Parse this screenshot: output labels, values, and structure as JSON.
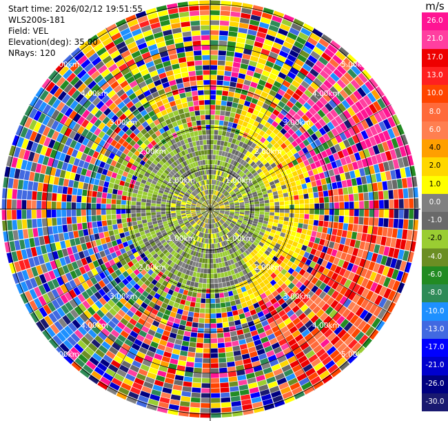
{
  "header": {
    "start_time": "Start time: 2026/02/12 19:51:55",
    "site": "WLS200s-181",
    "field": "Field: VEL",
    "elevation": "Elevation(deg): 35.00",
    "nrays": "NRays: 120"
  },
  "colorbar": {
    "unit": "m/s",
    "ticks": [
      "26.0",
      "21.0",
      "17.0",
      "13.0",
      "10.0",
      "8.0",
      "6.0",
      "4.0",
      "2.0",
      "1.0",
      "0.0",
      "-1.0",
      "-2.0",
      "-4.0",
      "-6.0",
      "-8.0",
      "-10.0",
      "-13.0",
      "-17.0",
      "-21.0",
      "-26.0",
      "-30.0"
    ],
    "colors": [
      "#ff1493",
      "#ff3fa0",
      "#ee0000",
      "#ff2020",
      "#ff4500",
      "#ff6a3a",
      "#ff7f50",
      "#ff9f00",
      "#ffd700",
      "#ffff00",
      "#808080",
      "#696969",
      "#9acd32",
      "#6b8e23",
      "#228b22",
      "#2e8b57",
      "#1e90ff",
      "#4169e1",
      "#0000ff",
      "#0000cd",
      "#000080",
      "#191970"
    ]
  },
  "chart_data": {
    "type": "heatmap",
    "projection": "polar PPI",
    "field": "VEL",
    "units": "m/s",
    "rays": 120,
    "range_rings_km": [
      1.0,
      2.0,
      3.0,
      4.0,
      5.0
    ],
    "ring_labels": [
      "1.00km",
      "2.00km",
      "3.00km",
      "4.00km",
      "5.00km"
    ],
    "max_range_km": 5.0,
    "color_levels": [
      -30,
      -26,
      -21,
      -17,
      -13,
      -10,
      -8,
      -6,
      -4,
      -2,
      -1,
      0,
      1,
      2,
      4,
      6,
      8,
      10,
      13,
      17,
      21,
      26
    ],
    "pattern": "noisy multicolor data beyond ~2km; gray/green near-zero values near center; yellow/orange ring to the east; red/orange positive velocities to the southeast"
  }
}
